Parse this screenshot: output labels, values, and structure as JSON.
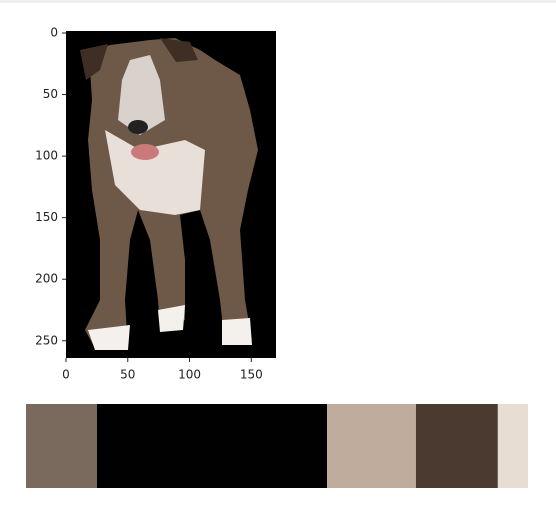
{
  "chart_data": [
    {
      "type": "image",
      "xlim": [
        0,
        170
      ],
      "ylim": [
        264,
        0
      ],
      "xticks": [
        0,
        50,
        100,
        150
      ],
      "yticks": [
        0,
        50,
        100,
        150,
        200,
        250
      ]
    },
    {
      "type": "palette",
      "values": [
        14.1,
        45.8,
        17.7,
        16.3,
        6.0
      ],
      "colors": [
        "#7a6a5e",
        "#010101",
        "#bfac9c",
        "#4b3a30",
        "#e8ddd2"
      ]
    }
  ]
}
